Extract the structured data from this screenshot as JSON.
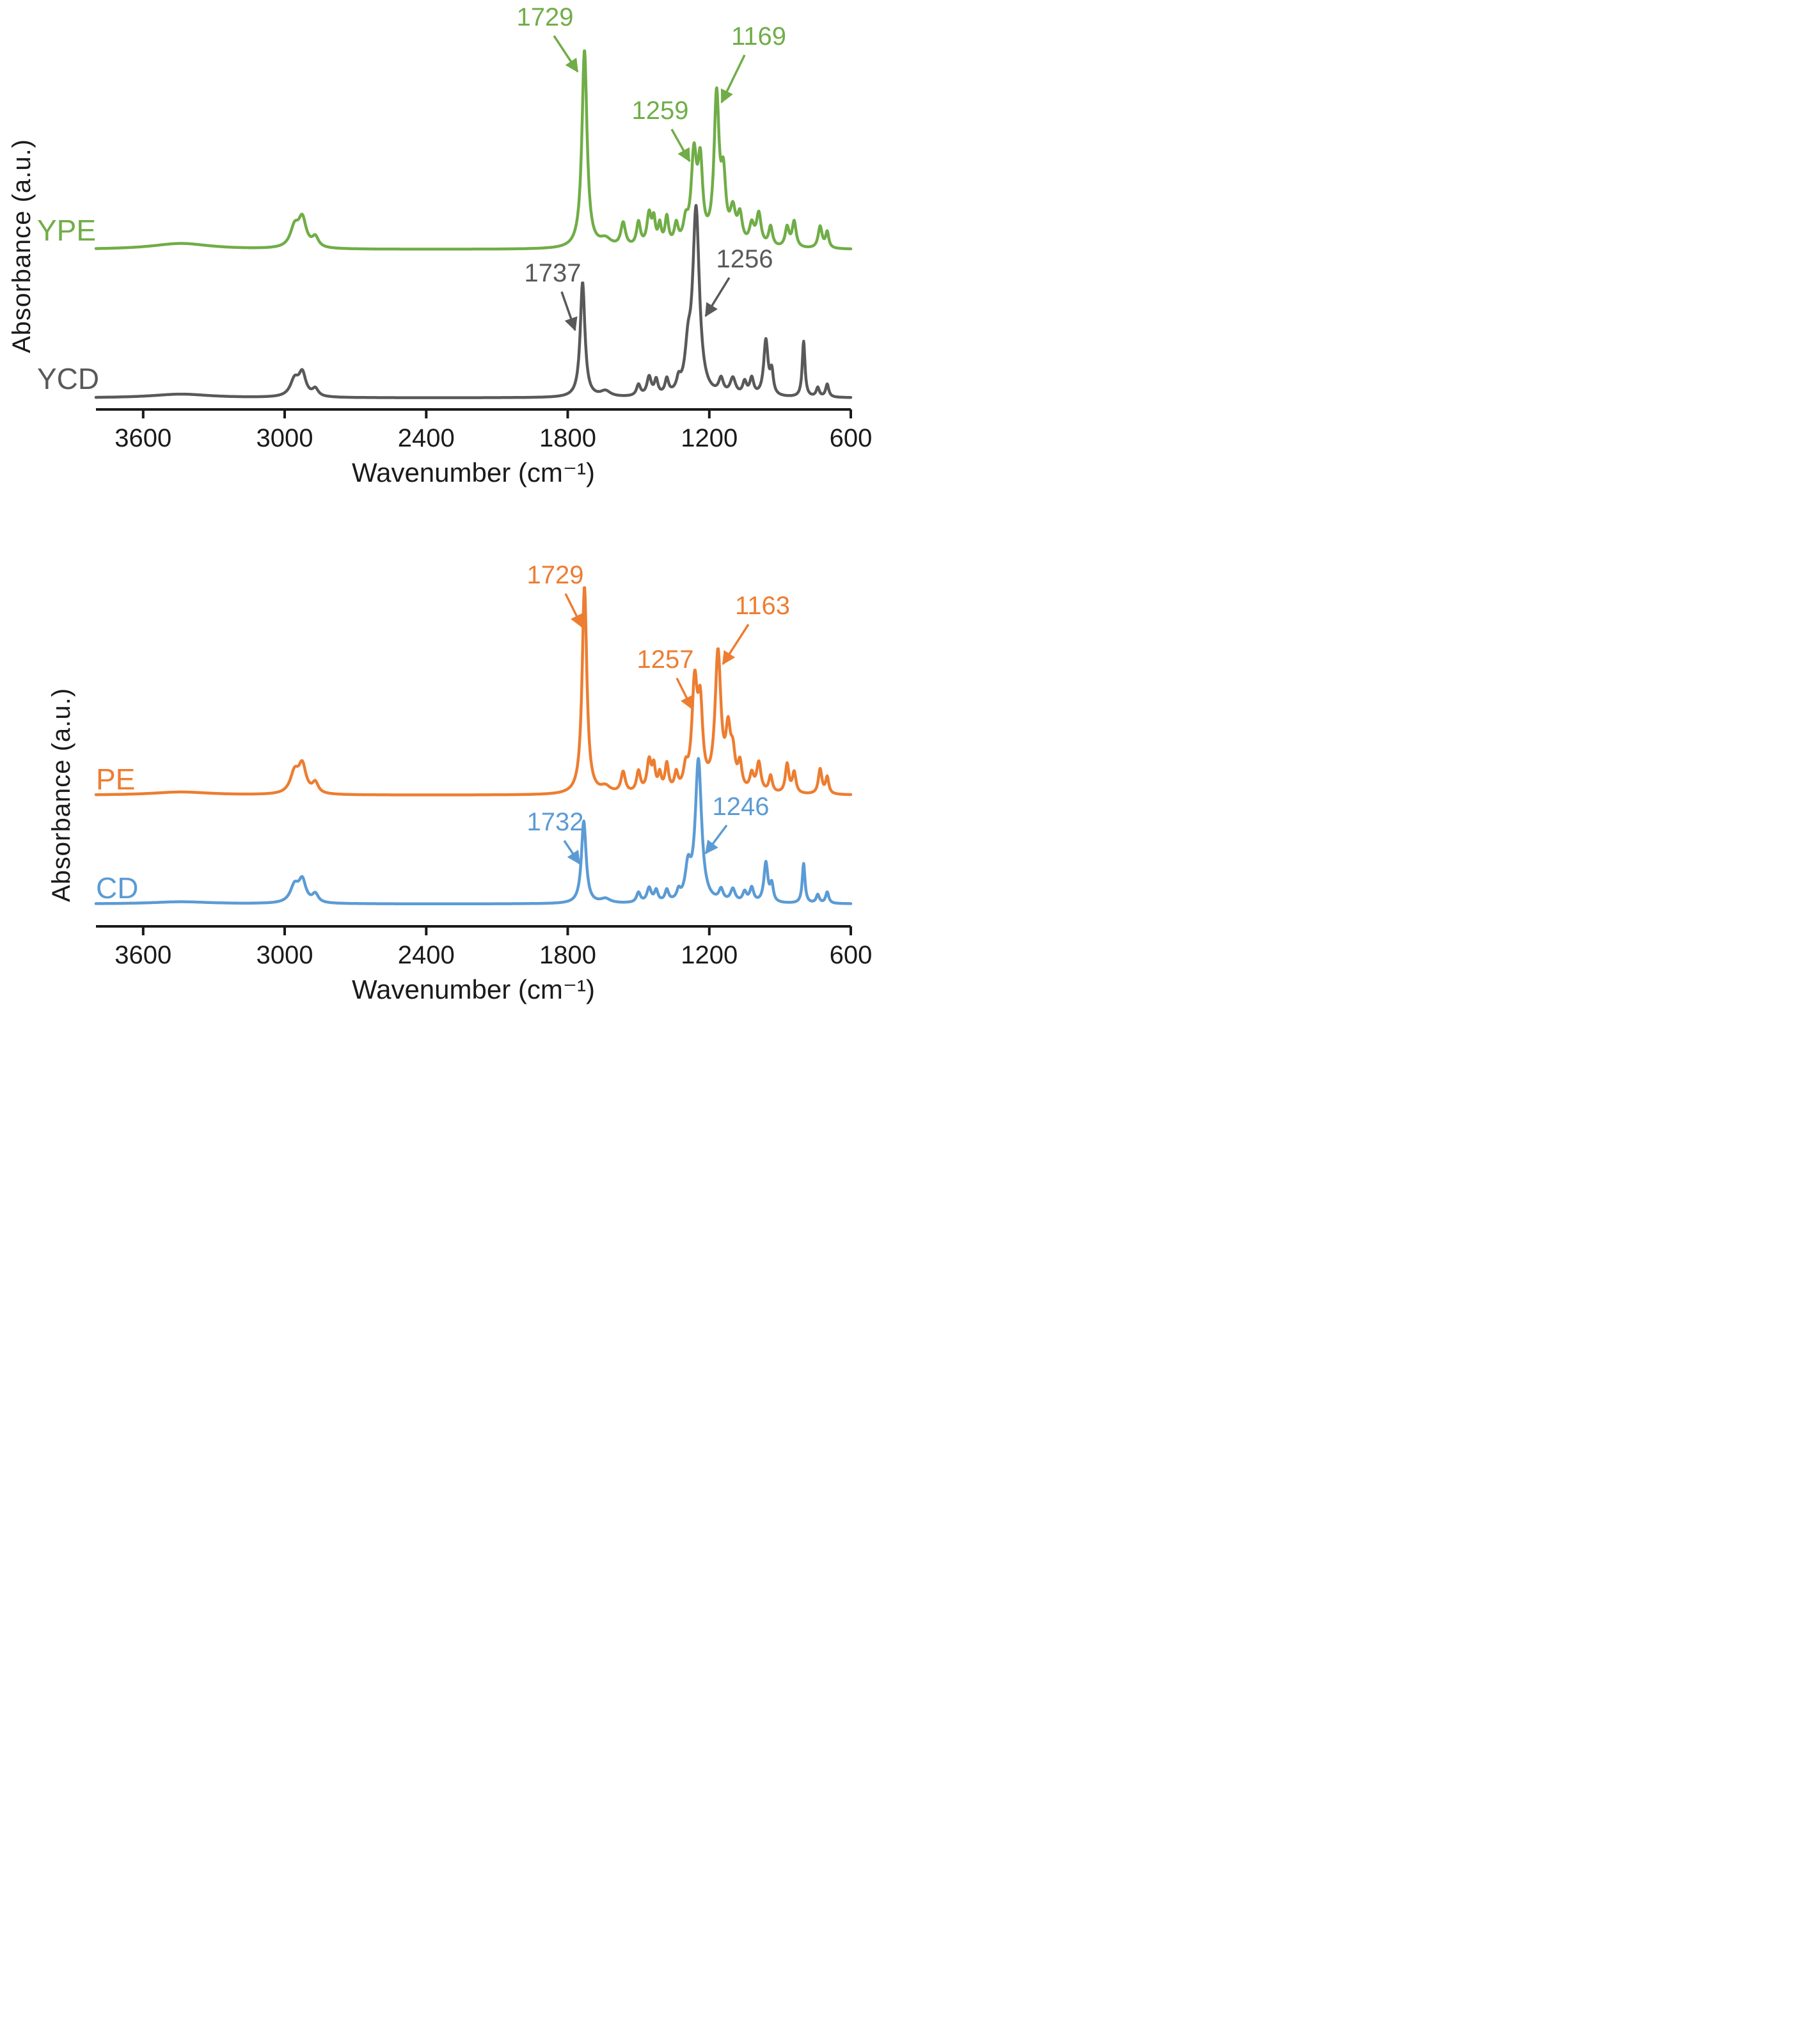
{
  "chart_data": [
    {
      "type": "line",
      "title": "",
      "xlabel": "Wavenumber  (cm⁻¹)",
      "ylabel": "Absorbance  (a.u.)",
      "x_ticks": [
        3600,
        3000,
        2400,
        1800,
        1200,
        600
      ],
      "x_axis": {
        "min": 600,
        "max": 4000,
        "reversed": true,
        "unit": "cm⁻¹"
      },
      "grid": false,
      "legend": "inline-labels",
      "series": [
        {
          "name": "YPE",
          "color": "#70AD47",
          "baseline": 390,
          "amplitude": 310,
          "label_x": 58,
          "label_y": 376,
          "peaks": [
            [
              3440,
              0.03,
              150
            ],
            [
              2958,
              0.1,
              22
            ],
            [
              2925,
              0.14,
              20
            ],
            [
              2870,
              0.05,
              16
            ],
            [
              1729,
              1.0,
              13
            ],
            [
              1640,
              0.04,
              30
            ],
            [
              1565,
              0.12,
              12
            ],
            [
              1500,
              0.12,
              10
            ],
            [
              1455,
              0.16,
              11
            ],
            [
              1435,
              0.12,
              8
            ],
            [
              1410,
              0.1,
              8
            ],
            [
              1380,
              0.14,
              9
            ],
            [
              1340,
              0.1,
              10
            ],
            [
              1300,
              0.1,
              12
            ],
            [
              1265,
              0.44,
              14
            ],
            [
              1238,
              0.38,
              12
            ],
            [
              1169,
              0.74,
              13
            ],
            [
              1140,
              0.3,
              12
            ],
            [
              1100,
              0.16,
              14
            ],
            [
              1070,
              0.14,
              12
            ],
            [
              1020,
              0.1,
              12
            ],
            [
              990,
              0.16,
              12
            ],
            [
              940,
              0.1,
              10
            ],
            [
              870,
              0.1,
              10
            ],
            [
              840,
              0.13,
              10
            ],
            [
              730,
              0.11,
              10
            ],
            [
              700,
              0.08,
              8
            ]
          ],
          "annotations": [
            {
              "label": "1729",
              "wavenumber": 1729,
              "lx": 852,
              "ly": 40,
              "x1": 866,
              "y1": 56,
              "x2": 903,
              "y2": 112
            },
            {
              "label": "1259",
              "wavenumber": 1259,
              "lx": 1032,
              "ly": 186,
              "x1": 1050,
              "y1": 202,
              "x2": 1078,
              "y2": 252
            },
            {
              "label": "1169",
              "wavenumber": 1169,
              "lx": 1186,
              "ly": 70,
              "x1": 1164,
              "y1": 86,
              "x2": 1128,
              "y2": 160
            }
          ]
        },
        {
          "name": "YCD",
          "color": "#595959",
          "baseline": 622,
          "amplitude": 290,
          "label_x": 58,
          "label_y": 608,
          "peaks": [
            [
              3440,
              0.02,
              150
            ],
            [
              2958,
              0.09,
              22
            ],
            [
              2925,
              0.12,
              18
            ],
            [
              2870,
              0.04,
              15
            ],
            [
              1737,
              0.62,
              12
            ],
            [
              1640,
              0.03,
              25
            ],
            [
              1500,
              0.06,
              10
            ],
            [
              1455,
              0.1,
              11
            ],
            [
              1425,
              0.08,
              9
            ],
            [
              1380,
              0.08,
              9
            ],
            [
              1330,
              0.06,
              10
            ],
            [
              1290,
              0.2,
              15
            ],
            [
              1256,
              1.0,
              17
            ],
            [
              1150,
              0.08,
              12
            ],
            [
              1100,
              0.09,
              14
            ],
            [
              1050,
              0.07,
              10
            ],
            [
              1020,
              0.09,
              10
            ],
            [
              960,
              0.3,
              11
            ],
            [
              935,
              0.12,
              8
            ],
            [
              800,
              0.3,
              7
            ],
            [
              740,
              0.05,
              8
            ],
            [
              700,
              0.07,
              8
            ]
          ],
          "annotations": [
            {
              "label": "1737",
              "wavenumber": 1737,
              "lx": 864,
              "ly": 440,
              "x1": 878,
              "y1": 456,
              "x2": 899,
              "y2": 516
            },
            {
              "label": "1256",
              "wavenumber": 1256,
              "lx": 1164,
              "ly": 418,
              "x1": 1140,
              "y1": 434,
              "x2": 1103,
              "y2": 494
            }
          ]
        }
      ]
    },
    {
      "type": "line",
      "title": "",
      "xlabel": "Wavenumber  (cm⁻¹)",
      "ylabel": "Absorbance  (a.u.)",
      "x_ticks": [
        3600,
        3000,
        2400,
        1800,
        1200,
        600
      ],
      "x_axis": {
        "min": 600,
        "max": 4000,
        "reversed": true,
        "unit": "cm⁻¹"
      },
      "grid": false,
      "legend": "inline-labels",
      "series": [
        {
          "name": "PE",
          "color": "#ED7D31",
          "baseline": 435,
          "amplitude": 325,
          "label_x": 150,
          "label_y": 426,
          "peaks": [
            [
              3440,
              0.015,
              150
            ],
            [
              2958,
              0.1,
              22
            ],
            [
              2925,
              0.13,
              19
            ],
            [
              2870,
              0.05,
              15
            ],
            [
              1729,
              1.0,
              12
            ],
            [
              1640,
              0.03,
              25
            ],
            [
              1565,
              0.1,
              11
            ],
            [
              1500,
              0.1,
              10
            ],
            [
              1455,
              0.15,
              11
            ],
            [
              1435,
              0.11,
              8
            ],
            [
              1410,
              0.08,
              8
            ],
            [
              1380,
              0.13,
              9
            ],
            [
              1340,
              0.08,
              9
            ],
            [
              1300,
              0.09,
              11
            ],
            [
              1262,
              0.5,
              14
            ],
            [
              1238,
              0.36,
              12
            ],
            [
              1163,
              0.66,
              15
            ],
            [
              1120,
              0.25,
              12
            ],
            [
              1100,
              0.15,
              12
            ],
            [
              1070,
              0.12,
              10
            ],
            [
              1020,
              0.08,
              10
            ],
            [
              990,
              0.14,
              11
            ],
            [
              940,
              0.08,
              9
            ],
            [
              870,
              0.14,
              9
            ],
            [
              840,
              0.1,
              9
            ],
            [
              730,
              0.12,
              9
            ],
            [
              700,
              0.08,
              8
            ]
          ],
          "annotations": [
            {
              "label": "1729",
              "wavenumber": 1729,
              "lx": 868,
              "ly": 104,
              "x1": 884,
              "y1": 120,
              "x2": 910,
              "y2": 172
            },
            {
              "label": "1257",
              "wavenumber": 1257,
              "lx": 1040,
              "ly": 236,
              "x1": 1058,
              "y1": 252,
              "x2": 1082,
              "y2": 300
            },
            {
              "label": "1163",
              "wavenumber": 1163,
              "lx": 1192,
              "ly": 152,
              "x1": 1170,
              "y1": 168,
              "x2": 1130,
              "y2": 230
            }
          ]
        },
        {
          "name": "CD",
          "color": "#5B9BD5",
          "baseline": 605,
          "amplitude": 222,
          "label_x": 150,
          "label_y": 596,
          "peaks": [
            [
              3440,
              0.015,
              150
            ],
            [
              2958,
              0.12,
              22
            ],
            [
              2925,
              0.15,
              18
            ],
            [
              2870,
              0.06,
              15
            ],
            [
              1732,
              0.58,
              12
            ],
            [
              1640,
              0.03,
              25
            ],
            [
              1500,
              0.07,
              10
            ],
            [
              1455,
              0.1,
              11
            ],
            [
              1425,
              0.08,
              9
            ],
            [
              1380,
              0.08,
              9
            ],
            [
              1330,
              0.06,
              9
            ],
            [
              1290,
              0.22,
              14
            ],
            [
              1246,
              1.0,
              16
            ],
            [
              1150,
              0.08,
              11
            ],
            [
              1100,
              0.09,
              12
            ],
            [
              1050,
              0.07,
              10
            ],
            [
              1020,
              0.1,
              10
            ],
            [
              960,
              0.28,
              10
            ],
            [
              935,
              0.12,
              8
            ],
            [
              800,
              0.28,
              7
            ],
            [
              740,
              0.06,
              8
            ],
            [
              700,
              0.08,
              8
            ]
          ],
          "annotations": [
            {
              "label": "1732",
              "wavenumber": 1732,
              "lx": 868,
              "ly": 490,
              "x1": 882,
              "y1": 506,
              "x2": 906,
              "y2": 542
            },
            {
              "label": "1246",
              "wavenumber": 1246,
              "lx": 1158,
              "ly": 466,
              "x1": 1136,
              "y1": 482,
              "x2": 1103,
              "y2": 526
            }
          ]
        }
      ]
    }
  ]
}
